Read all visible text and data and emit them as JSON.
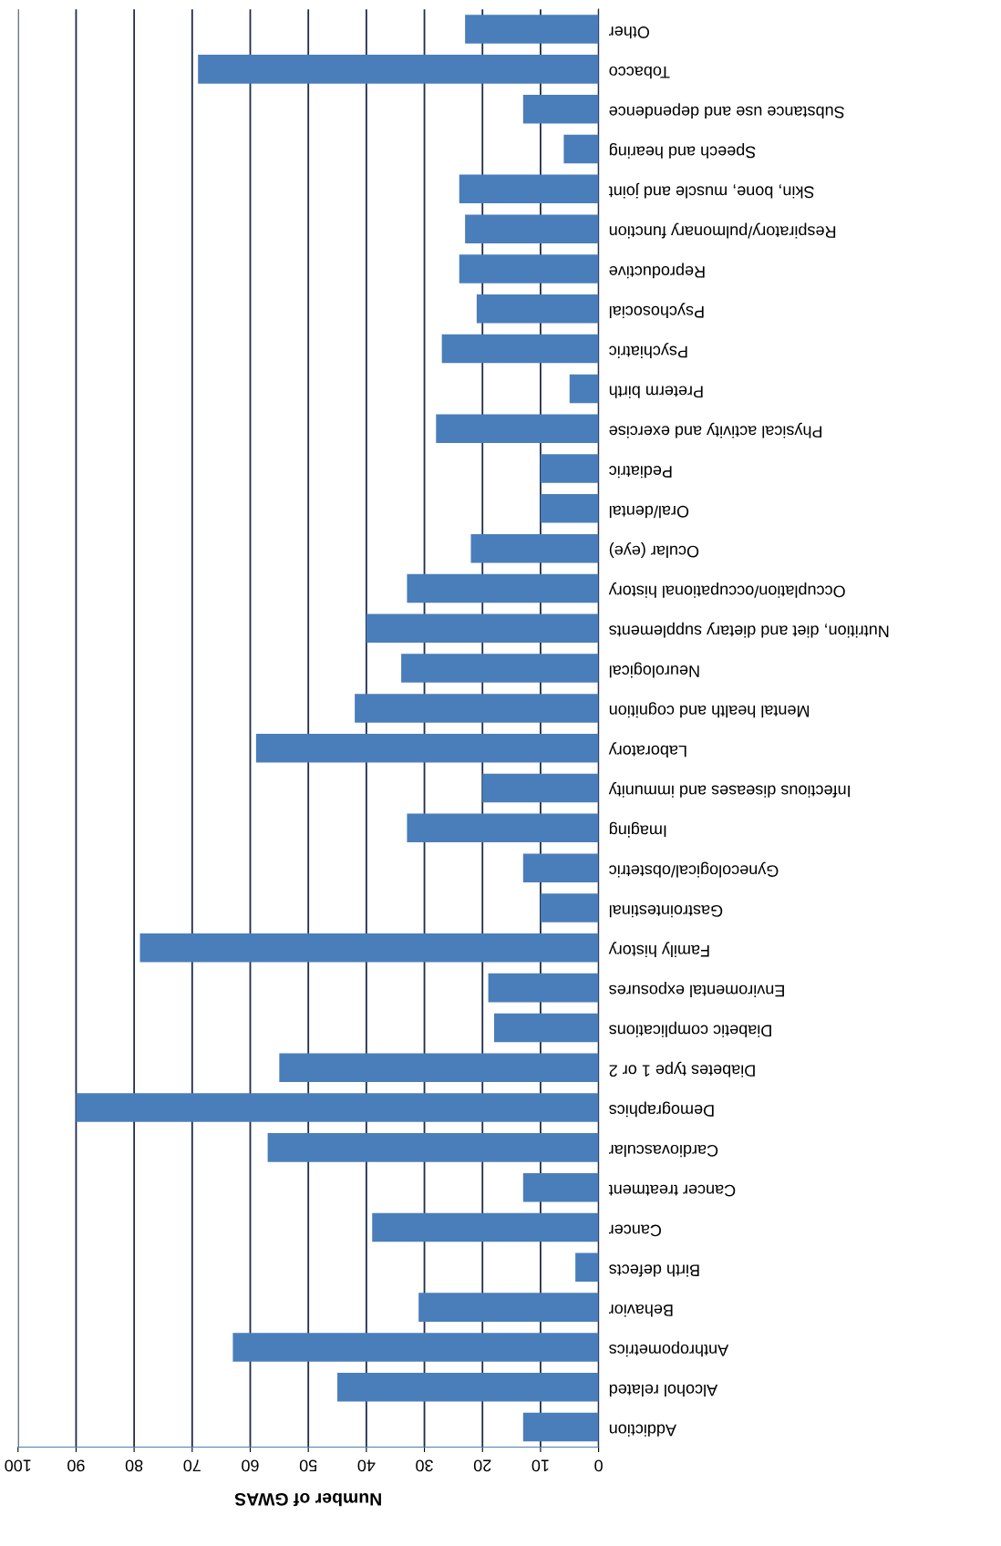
{
  "chart_data": {
    "type": "bar",
    "orientation": "horizontal",
    "xlabel": "Number of GWAS",
    "categories": [
      "Other",
      "Tobacco",
      "Substance use and dependence",
      "Speech and hearing",
      "Skin, bone, muscle and joint",
      "Respiratory/pulmonary function",
      "Reproductive",
      "Psychosocial",
      "Psychiatric",
      "Preterm birth",
      "Physical activity and exercise",
      "Pediatric",
      "Oral/dental",
      "Ocular (eye)",
      "Occuplation/occupational history",
      "Nutrition, diet and dietary supplements",
      "Neurological",
      "Mental health and cognition",
      "Laboratory",
      "Infectious diseases and immunity",
      "Imaging",
      "Gynecological/obstetric",
      "Gastrointestinal",
      "Family history",
      "Enviromental exposures",
      "Diabetic complications",
      "Diabetes type 1 or 2",
      "Demographics",
      "Cardiovascular",
      "Cancer treatment",
      "Cancer",
      "Birth defects",
      "Behavior",
      "Anthropometrics",
      "Alcohol related",
      "Addiction"
    ],
    "values": [
      23,
      69,
      13,
      6,
      24,
      23,
      24,
      21,
      27,
      5,
      28,
      10,
      10,
      22,
      33,
      40,
      34,
      42,
      59,
      20,
      33,
      13,
      10,
      79,
      19,
      18,
      55,
      90,
      57,
      13,
      39,
      4,
      31,
      63,
      45,
      13
    ],
    "color": "#4a7ebb",
    "xlim": [
      100,
      0
    ],
    "xticks": [
      0,
      10,
      20,
      30,
      40,
      50,
      60,
      70,
      80,
      90,
      100
    ],
    "grid": "x"
  }
}
